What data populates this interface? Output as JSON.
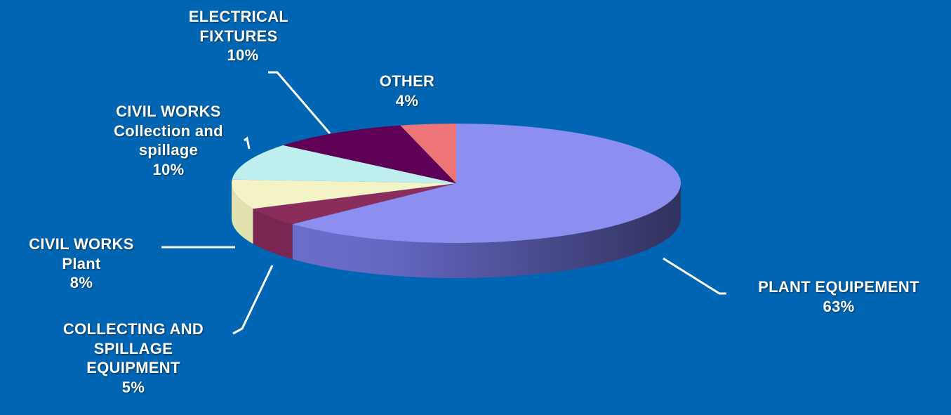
{
  "chart_data": {
    "type": "pie",
    "title": "",
    "slices": [
      {
        "label": [
          "PLANT EQUIPEMENT"
        ],
        "value": 63,
        "value_text": "63%",
        "color": "#8c8ef0",
        "side_color": "#6a6ccc"
      },
      {
        "label": [
          "COLLECTING AND",
          "SPILLAGE",
          "EQUIPMENT"
        ],
        "value": 5,
        "value_text": "5%",
        "color": "#8a2d5a",
        "side_color": "#7a2450"
      },
      {
        "label": [
          "CIVIL WORKS",
          "Plant"
        ],
        "value": 8,
        "value_text": "8%",
        "color": "#f3f3c6",
        "side_color": "#e2e2b0"
      },
      {
        "label": [
          "CIVIL WORKS",
          "Collection and",
          "spillage"
        ],
        "value": 10,
        "value_text": "10%",
        "color": "#bfeeee",
        "side_color": "#a7dede"
      },
      {
        "label": [
          "ELECTRICAL",
          "FIXTURES"
        ],
        "value": 10,
        "value_text": "10%",
        "color": "#5e0056",
        "side_color": "#4a0044"
      },
      {
        "label": [
          "OTHER"
        ],
        "value": 4,
        "value_text": "4%",
        "color": "#ee7577",
        "side_color": "#d25f61"
      }
    ]
  }
}
